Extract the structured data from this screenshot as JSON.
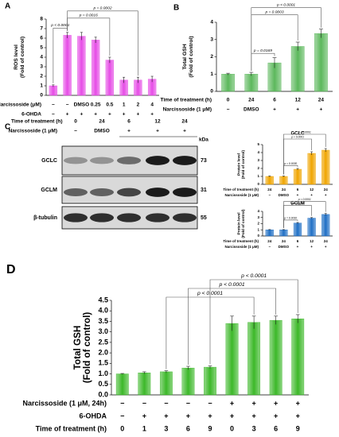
{
  "chart_data": [
    {
      "type": "bar",
      "panel": "A",
      "ylabel": [
        "ROS level",
        "(Fold of control)"
      ],
      "color": "#e64ce6",
      "categories": [
        null,
        null,
        null,
        null,
        null,
        null,
        null,
        null
      ],
      "values": [
        1.0,
        6.3,
        6.2,
        5.8,
        3.7,
        1.6,
        1.6,
        1.7
      ],
      "errors": [
        0.1,
        0.3,
        0.4,
        0.3,
        0.3,
        0.3,
        0.3,
        0.3
      ],
      "ylim": [
        0,
        8
      ],
      "yticks": [
        0,
        1,
        2,
        3,
        4,
        5,
        6,
        7,
        8
      ],
      "condition_rows": [
        {
          "label": "Narcissoside (μM)",
          "cells": [
            "−",
            "−",
            "DMSO",
            "0.25",
            "0.5",
            "1",
            "2",
            "4"
          ]
        },
        {
          "label": "6-OHDA",
          "cells": [
            "−",
            "+",
            "+",
            "+",
            "+",
            "+",
            "+",
            "+"
          ]
        }
      ],
      "comparisons": [
        {
          "from": 0,
          "to": 1,
          "label": "p < 0.0001"
        },
        {
          "from": 1,
          "to": 4,
          "label": "p = 0.0016"
        },
        {
          "from": 1,
          "to": 6,
          "label": "p = 0.0002"
        }
      ]
    },
    {
      "type": "bar",
      "panel": "B",
      "ylabel": [
        "Total GSH",
        "(Fold of control)"
      ],
      "color": "#5cb85c",
      "categories": [
        null,
        null,
        null,
        null,
        null
      ],
      "values": [
        1.0,
        1.0,
        1.65,
        2.6,
        3.35
      ],
      "errors": [
        0.05,
        0.1,
        0.3,
        0.25,
        0.25
      ],
      "ylim": [
        0,
        4
      ],
      "yticks": [
        0,
        1,
        2,
        3,
        4
      ],
      "condition_rows": [
        {
          "label": "Time of treatment (h)",
          "cells": [
            "0",
            "24",
            "6",
            "12",
            "24"
          ]
        },
        {
          "label": "Narcissoside (1 μM)",
          "cells": [
            "−",
            "DMSO",
            "+",
            "+",
            "+"
          ]
        }
      ],
      "comparisons": [
        {
          "from": 1,
          "to": 2,
          "label": "p = 0.0169"
        },
        {
          "from": 1,
          "to": 3,
          "label": "p = 0.0003"
        },
        {
          "from": 1,
          "to": 4,
          "label": "p < 0.0001"
        }
      ]
    },
    {
      "type": "bar",
      "title": "GCLC",
      "ylabel": [
        "Protein level",
        "(Fold of control)"
      ],
      "color": "#f0a500",
      "categories": [
        null,
        null,
        null,
        null,
        null
      ],
      "values": [
        1.0,
        1.0,
        1.9,
        3.9,
        4.3
      ],
      "errors": [
        0.05,
        0.05,
        0.1,
        0.2,
        0.2
      ],
      "ylim": [
        0,
        5
      ],
      "yticks": [
        0,
        1,
        2,
        3,
        4,
        5
      ],
      "condition_rows": [
        {
          "label": "Time of treatment (h)",
          "cells": [
            "24",
            "24",
            "6",
            "12",
            "24"
          ]
        },
        {
          "label": "Narcissoside (1 μM)",
          "cells": [
            "−",
            "DMSO",
            "+",
            "+",
            "+"
          ]
        }
      ],
      "comparisons": [
        {
          "from": 1,
          "to": 2,
          "label": "p = 0.0030"
        },
        {
          "from": 1,
          "to": 3,
          "label": "p < 0.0001"
        },
        {
          "from": 1,
          "to": 4,
          "label": "p < 0.0001"
        }
      ]
    },
    {
      "type": "bar",
      "title": "GCLM",
      "ylabel": [
        "Protein level",
        "(Fold of control)"
      ],
      "color": "#1f6fc5",
      "categories": [
        null,
        null,
        null,
        null,
        null
      ],
      "values": [
        1.0,
        1.0,
        2.1,
        2.9,
        3.5
      ],
      "errors": [
        0.05,
        0.05,
        0.1,
        0.1,
        0.15
      ],
      "ylim": [
        0,
        4
      ],
      "yticks": [
        0,
        1,
        2,
        3,
        4
      ],
      "condition_rows": [
        {
          "label": "Time of treatment (h)",
          "cells": [
            "24",
            "24",
            "6",
            "12",
            "24"
          ]
        },
        {
          "label": "Narcissoside (1 μM)",
          "cells": [
            "−",
            "DMSO",
            "+",
            "+",
            "+"
          ]
        }
      ],
      "comparisons": [
        {
          "from": 1,
          "to": 2,
          "label": "p = 0.0010"
        },
        {
          "from": 1,
          "to": 3,
          "label": "p < 0.0001"
        },
        {
          "from": 1,
          "to": 4,
          "label": "p < 0.0001"
        }
      ]
    },
    {
      "type": "bar",
      "panel": "D",
      "ylabel": [
        "Total GSH",
        "(Fold of control)"
      ],
      "color": "#3cb829",
      "categories": [
        null,
        null,
        null,
        null,
        null,
        null,
        null,
        null,
        null
      ],
      "values": [
        1.0,
        1.05,
        1.1,
        1.28,
        1.32,
        3.4,
        3.45,
        3.55,
        3.62
      ],
      "errors": [
        0.02,
        0.05,
        0.05,
        0.08,
        0.06,
        0.35,
        0.3,
        0.2,
        0.2
      ],
      "ylim": [
        0,
        4.5
      ],
      "yticks": [
        {
          "value": 0,
          "label": "0.0"
        },
        0.5,
        {
          "value": 1,
          "label": "1.0"
        },
        1.5,
        {
          "value": 2,
          "label": "2.0"
        },
        2.5,
        {
          "value": 3,
          "label": "3.0"
        },
        3.5,
        {
          "value": 4,
          "label": "4.0"
        },
        4.5
      ],
      "condition_rows": [
        {
          "label": "Narcissoside (1 μM, 24h)",
          "cells": [
            "−",
            "−",
            "−",
            "−",
            "−",
            "+",
            "+",
            "+",
            "+"
          ]
        },
        {
          "label": "6-OHDA",
          "cells": [
            "−",
            "+",
            "+",
            "+",
            "+",
            "+",
            "+",
            "+",
            "+"
          ]
        },
        {
          "label": "Time of treatment (h)",
          "cells": [
            "0",
            "1",
            "3",
            "6",
            "9",
            "0",
            "3",
            "6",
            "9"
          ]
        }
      ],
      "comparisons": [
        {
          "from": 2,
          "to": 6,
          "label": "p < 0.0001"
        },
        {
          "from": 3,
          "to": 7,
          "label": "p < 0.0001"
        },
        {
          "from": 4,
          "to": 8,
          "label": "p < 0.0001"
        }
      ]
    }
  ],
  "blot": {
    "panel": "C",
    "rows": [
      {
        "label": "Time of treatment (h)",
        "cells": [
          "0",
          "24",
          "6",
          "12",
          "24"
        ]
      },
      {
        "label": "Narcissoside (1 μM)",
        "cells": [
          "−",
          "DMSO",
          "+",
          "+",
          "+"
        ]
      }
    ],
    "kda_label": "kDa",
    "bands": [
      {
        "name": "GCLC",
        "kda": "73"
      },
      {
        "name": "GCLM",
        "kda": "31"
      },
      {
        "name": "β-tubulin",
        "kda": "55"
      }
    ]
  }
}
